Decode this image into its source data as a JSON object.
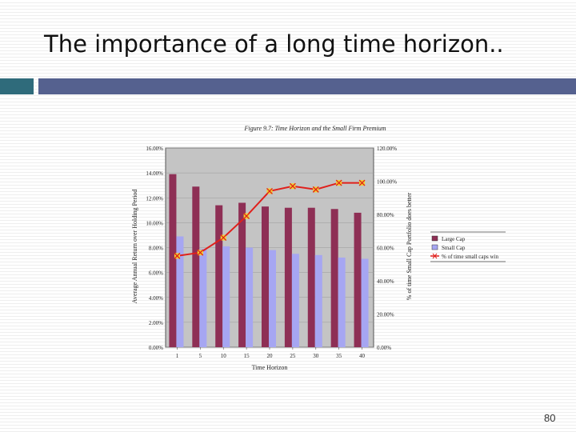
{
  "slide": {
    "title": "The importance of a long time horizon..",
    "page_number": "80"
  },
  "colors": {
    "accent_teal": "#2f6b7b",
    "accent_blue": "#55618f",
    "large_cap": "#8e2f55",
    "small_cap": "#a6a6f2",
    "line": "#e0201c",
    "marker": "#f2d22c",
    "plot_bg": "#c4c4c4"
  },
  "chart_data": {
    "type": "bar",
    "title": "Figure 9.7: Time Horizon and the Small Firm Premium",
    "xlabel": "Time Horizon",
    "ylabel": "Average Annual Return over Holding Period",
    "y2label": "% of time Small Cap Portfolio does better",
    "categories": [
      "1",
      "5",
      "10",
      "15",
      "20",
      "25",
      "30",
      "35",
      "40"
    ],
    "ylim": [
      0,
      16
    ],
    "yticks": [
      "0.00%",
      "2.00%",
      "4.00%",
      "6.00%",
      "8.00%",
      "10.00%",
      "12.00%",
      "14.00%",
      "16.00%"
    ],
    "y2lim": [
      0,
      120
    ],
    "y2ticks": [
      "0.00%",
      "20.00%",
      "40.00%",
      "60.00%",
      "80.00%",
      "100.00%",
      "120.00%"
    ],
    "series": [
      {
        "name": "Large Cap",
        "kind": "bar",
        "axis": "left",
        "values": [
          13.9,
          12.9,
          11.4,
          11.6,
          11.3,
          11.2,
          11.2,
          11.1,
          10.8
        ]
      },
      {
        "name": "Small Cap",
        "kind": "bar",
        "axis": "left",
        "values": [
          8.9,
          7.9,
          8.1,
          8.0,
          7.8,
          7.5,
          7.4,
          7.2,
          7.1
        ]
      },
      {
        "name": "% of time small caps win",
        "kind": "line",
        "axis": "right",
        "values": [
          55,
          57,
          66,
          79,
          94,
          97,
          95,
          99,
          99
        ]
      }
    ],
    "legend_position": "right"
  }
}
